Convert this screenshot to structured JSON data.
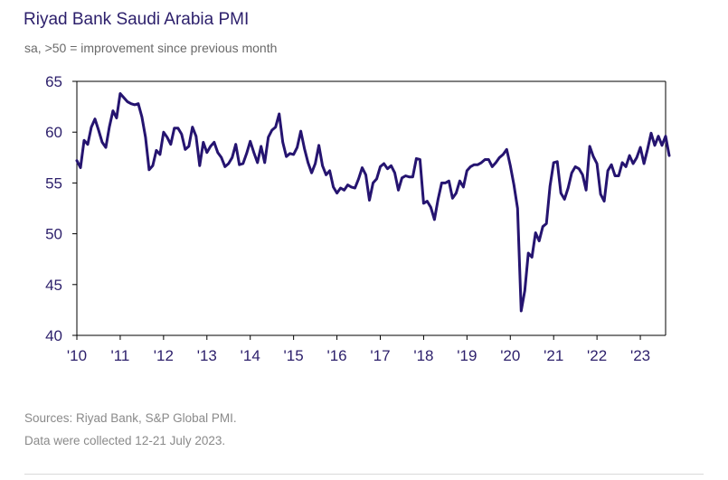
{
  "title": "Riyad Bank Saudi Arabia PMI",
  "subtitle": "sa, >50 = improvement since previous month",
  "sources": [
    "Sources: Riyad Bank, S&P Global PMI.",
    "Data were collected 12-21 July 2023."
  ],
  "colors": {
    "line": "#251470",
    "axis": "#000000",
    "text": "#2c1f6b"
  },
  "chart_data": {
    "type": "line",
    "title": "Riyad Bank Saudi Arabia PMI",
    "subtitle": "sa, >50 = improvement since previous month",
    "xlabel": "",
    "ylabel": "",
    "ylim": [
      40,
      65
    ],
    "yticks": [
      40,
      45,
      50,
      55,
      60,
      65
    ],
    "xlim": [
      2010.0,
      2023.583
    ],
    "xticks": [
      2010,
      2011,
      2012,
      2013,
      2014,
      2015,
      2016,
      2017,
      2018,
      2019,
      2020,
      2021,
      2022,
      2023
    ],
    "xtick_labels": [
      "'10",
      "'11",
      "'12",
      "'13",
      "'14",
      "'15",
      "'16",
      "'17",
      "'18",
      "'19",
      "'20",
      "'21",
      "'22",
      "'23"
    ],
    "grid": false,
    "legend": "none",
    "series": [
      {
        "start": "2010-01",
        "frequency": "monthly",
        "values": [
          57.2,
          56.5,
          59.2,
          58.8,
          60.5,
          61.3,
          60.2,
          59.0,
          58.5,
          60.5,
          62.1,
          61.4,
          63.8,
          63.4,
          63.0,
          62.8,
          62.7,
          62.8,
          61.5,
          59.5,
          56.3,
          56.7,
          58.2,
          57.8,
          60.0,
          59.5,
          58.8,
          60.4,
          60.4,
          59.8,
          58.3,
          58.6,
          60.5,
          59.6,
          56.7,
          59.0,
          58.0,
          58.6,
          59.0,
          58.0,
          57.5,
          56.6,
          56.9,
          57.5,
          58.8,
          56.8,
          56.9,
          57.9,
          59.1,
          58.0,
          57.0,
          58.6,
          57.0,
          59.5,
          60.2,
          60.5,
          61.8,
          59.0,
          57.6,
          57.9,
          57.8,
          58.5,
          60.1,
          58.4,
          57.0,
          56.0,
          56.9,
          58.7,
          56.7,
          55.8,
          56.2,
          54.6,
          54.0,
          54.5,
          54.3,
          54.8,
          54.6,
          54.5,
          55.4,
          56.5,
          55.8,
          53.3,
          55.0,
          55.4,
          56.6,
          56.9,
          56.4,
          56.7,
          56.0,
          54.3,
          55.5,
          55.7,
          55.6,
          55.6,
          57.4,
          57.3,
          53.0,
          53.2,
          52.6,
          51.4,
          53.4,
          55.0,
          55.0,
          55.2,
          53.5,
          54.0,
          55.2,
          54.6,
          56.2,
          56.6,
          56.8,
          56.8,
          57.0,
          57.3,
          57.3,
          56.6,
          57.0,
          57.5,
          57.8,
          58.3,
          56.7,
          54.8,
          52.5,
          42.4,
          44.4,
          48.1,
          47.7,
          50.1,
          49.3,
          50.7,
          51.0,
          54.7,
          57.0,
          57.1,
          54.0,
          53.4,
          54.5,
          56.0,
          56.6,
          56.4,
          55.8,
          54.3,
          58.6,
          57.6,
          56.9,
          53.9,
          53.2,
          56.2,
          56.8,
          55.7,
          55.7,
          57.0,
          56.6,
          57.7,
          56.9,
          57.5,
          58.5,
          56.9,
          58.3,
          59.9,
          58.7,
          59.6,
          58.7,
          59.6,
          57.7
        ]
      }
    ]
  }
}
